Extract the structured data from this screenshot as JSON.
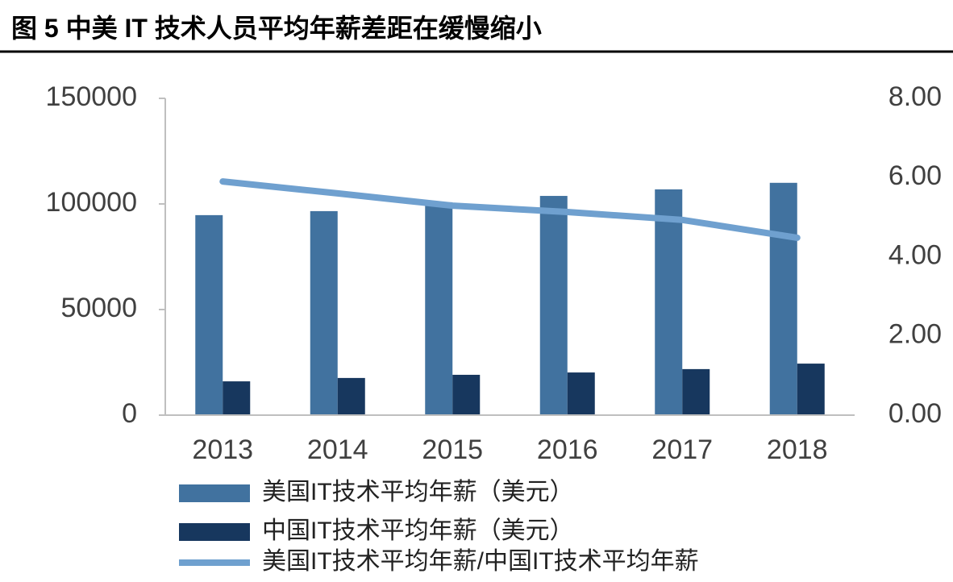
{
  "chart_data": {
    "type": "bar",
    "title": "图 5 中美 IT 技术人员平均年薪差距在缓慢缩小",
    "categories": [
      "2013",
      "2014",
      "2015",
      "2016",
      "2017",
      "2018"
    ],
    "series": [
      {
        "name": "美国IT技术平均年薪（美元）",
        "type": "bar",
        "color": "#41729f",
        "values": [
          94700,
          96600,
          100800,
          103800,
          106900,
          110000
        ]
      },
      {
        "name": "中国IT技术平均年薪（美元）",
        "type": "bar",
        "color": "#17375e",
        "values": [
          16000,
          17600,
          19100,
          20200,
          21800,
          24400
        ]
      },
      {
        "name": "美国IT技术平均年薪/中国IT技术平均年薪",
        "type": "line",
        "axis": "y2",
        "color": "#6fa0cf",
        "values": [
          5.9,
          5.6,
          5.29,
          5.13,
          4.93,
          4.48
        ]
      }
    ],
    "ylim": [
      0,
      150000
    ],
    "yticks": [
      0,
      50000,
      100000,
      150000
    ],
    "y2lim": [
      0,
      8
    ],
    "y2ticks": [
      {
        "value": 0,
        "label": "0.00"
      },
      {
        "value": 2,
        "label": "2.00"
      },
      {
        "value": 4,
        "label": "4.00"
      },
      {
        "value": 6,
        "label": "6.00"
      },
      {
        "value": 8,
        "label": "8.00"
      }
    ]
  }
}
